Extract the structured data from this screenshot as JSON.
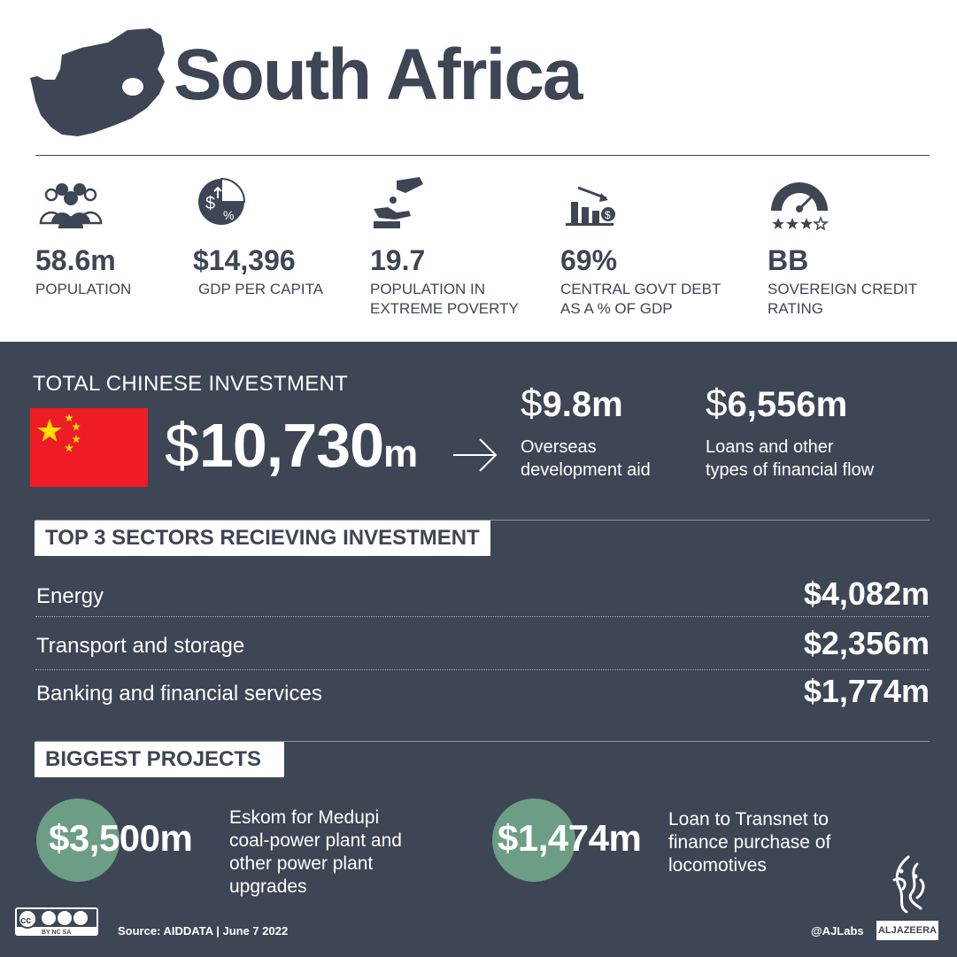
{
  "header": {
    "title": "South Africa"
  },
  "stats": [
    {
      "icon": "population-icon",
      "value": "58.6m",
      "label_lines": [
        "POPULATION"
      ]
    },
    {
      "icon": "gdp-icon",
      "value": "$14,396",
      "label_lines": [
        "GDP PER CAPITA"
      ]
    },
    {
      "icon": "poverty-icon",
      "value": "19.7",
      "label_lines": [
        "POPULATION IN",
        "EXTREME POVERTY"
      ]
    },
    {
      "icon": "debt-chart-icon",
      "value": "69%",
      "label_lines": [
        "CENTRAL GOVT DEBT",
        "AS A % OF GDP"
      ]
    },
    {
      "icon": "credit-gauge-icon",
      "value": "BB",
      "label_lines": [
        "SOVEREIGN CREDIT",
        "RATING"
      ]
    }
  ],
  "investment": {
    "label": "TOTAL CHINESE INVESTMENT",
    "total": {
      "dollar": "$",
      "number": "10,730",
      "unit": "m"
    },
    "aid": {
      "dollar": "$",
      "number": "9.8m",
      "desc_lines": [
        "Overseas",
        "development aid"
      ]
    },
    "loans": {
      "dollar": "$",
      "number": "6,556m",
      "desc_lines": [
        "Loans and other",
        "types of financial flow"
      ]
    }
  },
  "sectors": {
    "heading": "TOP 3 SECTORS RECIEVING INVESTMENT",
    "items": [
      {
        "name": "Energy",
        "amount": "$4,082m"
      },
      {
        "name": "Transport and storage",
        "amount": "$2,356m"
      },
      {
        "name": "Banking and financial services",
        "amount": "$1,774m"
      }
    ]
  },
  "projects": {
    "heading": "BIGGEST PROJECTS",
    "items": [
      {
        "amount": "$3,500m",
        "desc_lines": [
          "Eskom for Medupi",
          "coal-power plant and",
          "other power plant",
          "upgrades"
        ]
      },
      {
        "amount": "$1,474m",
        "desc_lines": [
          "Loan to Transnet to",
          "finance purchase of",
          "locomotives"
        ]
      }
    ]
  },
  "footer": {
    "license": "BY NC SA",
    "source": "Source: AIDDATA  |  June 7 2022",
    "handle": "@AJLabs",
    "brand": "ALJAZEERA"
  },
  "colors": {
    "navy": "#3e4555",
    "china_red": "#ee1c25",
    "china_yellow": "#ffde00",
    "project_green": "#6b9e84"
  }
}
